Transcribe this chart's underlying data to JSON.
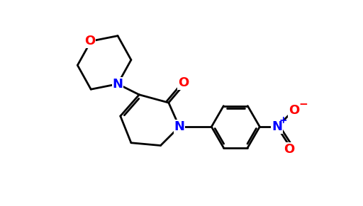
{
  "bg_color": "#ffffff",
  "bond_color": "#000000",
  "N_color": "#0000ff",
  "O_color": "#ff0000",
  "lw": 2.0,
  "figsize": [
    5.12,
    2.91
  ],
  "dpi": 100,
  "xlim": [
    0,
    10.5
  ],
  "ylim": [
    0,
    5.9
  ]
}
